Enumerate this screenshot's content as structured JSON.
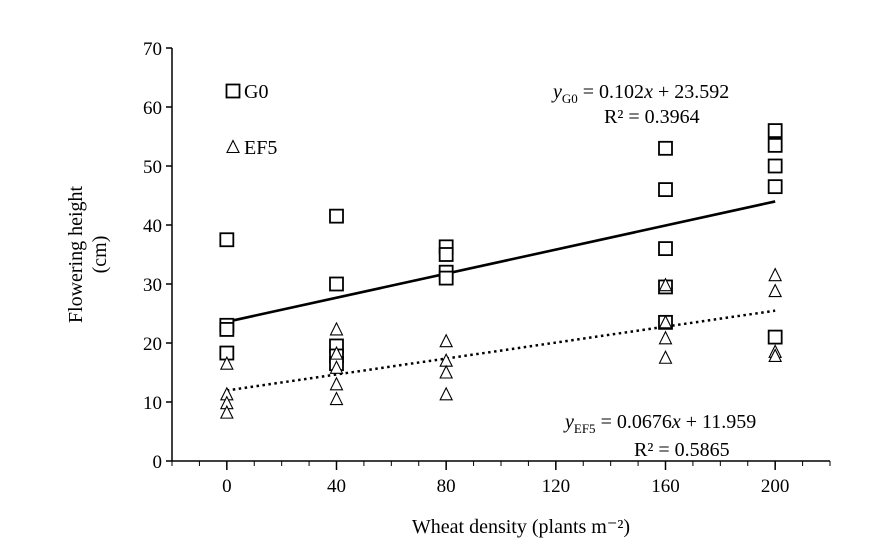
{
  "chart_data": {
    "type": "scatter",
    "title": "",
    "xlabel": "Wheat density (plants m⁻²)",
    "ylabel": "Flowering height (cm)",
    "xlim": [
      -20,
      220
    ],
    "ylim": [
      0,
      70
    ],
    "x_ticks": [
      0,
      40,
      80,
      120,
      160,
      200
    ],
    "y_ticks": [
      0,
      10,
      20,
      30,
      40,
      50,
      60,
      70
    ],
    "x_tick_labels": [
      "0",
      "40",
      "80",
      "120",
      "160",
      "200"
    ],
    "y_tick_labels": [
      "0",
      "10",
      "20",
      "30",
      "40",
      "50",
      "60",
      "70"
    ],
    "grid": false,
    "legend_position": "top-left",
    "series": [
      {
        "name": "G0",
        "marker": "square",
        "points": [
          [
            0,
            37.5
          ],
          [
            0,
            23
          ],
          [
            0,
            22.3
          ],
          [
            0,
            18.3
          ],
          [
            40,
            41.5
          ],
          [
            40,
            30
          ],
          [
            40,
            19.5
          ],
          [
            40,
            17.8
          ],
          [
            40,
            16.5
          ],
          [
            80,
            36.3
          ],
          [
            80,
            35
          ],
          [
            80,
            32
          ],
          [
            80,
            31
          ],
          [
            160,
            53
          ],
          [
            160,
            46
          ],
          [
            160,
            36
          ],
          [
            160,
            29.5
          ],
          [
            160,
            23.5
          ],
          [
            200,
            56
          ],
          [
            200,
            53.5
          ],
          [
            200,
            50
          ],
          [
            200,
            46.5
          ],
          [
            200,
            21
          ]
        ],
        "trendline": {
          "style": "solid",
          "slope": 0.102,
          "intercept": 23.592,
          "equation_lhs": "y",
          "equation_sub": "G0",
          "equation_rhs": " = 0.102x + 23.592",
          "r2_label": "R² = 0.3964"
        }
      },
      {
        "name": "EF5",
        "marker": "triangle",
        "points": [
          [
            0,
            16.5
          ],
          [
            0,
            11.3
          ],
          [
            0,
            9.8
          ],
          [
            0,
            8.2
          ],
          [
            40,
            22.3
          ],
          [
            40,
            18.2
          ],
          [
            40,
            15.8
          ],
          [
            40,
            13
          ],
          [
            40,
            10.5
          ],
          [
            80,
            20.3
          ],
          [
            80,
            17
          ],
          [
            80,
            15
          ],
          [
            80,
            11.3
          ],
          [
            160,
            29.8
          ],
          [
            160,
            23.5
          ],
          [
            160,
            20.8
          ],
          [
            160,
            17.5
          ],
          [
            200,
            31.5
          ],
          [
            200,
            28.8
          ],
          [
            200,
            18.5
          ],
          [
            200,
            17.8
          ]
        ],
        "trendline": {
          "style": "dotted",
          "slope": 0.0676,
          "intercept": 11.959,
          "equation_lhs": "y",
          "equation_sub": "EF5",
          "equation_rhs": " = 0.0676x + 11.959",
          "r2_label": "R² = 0.5865"
        }
      }
    ]
  }
}
